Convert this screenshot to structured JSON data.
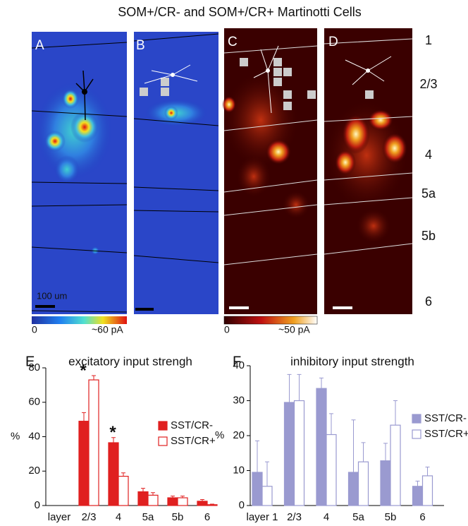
{
  "title": "SOM+/CR- and SOM+/CR+ Martinotti Cells",
  "panels": [
    "A",
    "B",
    "C",
    "D"
  ],
  "layers": [
    "1",
    "2/3",
    "4",
    "5a",
    "5b",
    "6"
  ],
  "scale_bar": "100 um",
  "colorbars": [
    {
      "min": "0",
      "max": "~60 pA"
    },
    {
      "min": "0",
      "max": "~50 pA"
    }
  ],
  "chart_data": [
    {
      "type": "bar",
      "panel": "E",
      "title": "excitatory input strengh",
      "ylabel": "%",
      "categories": [
        "layer",
        "2/3",
        "4",
        "5a",
        "5b",
        "6"
      ],
      "series": [
        {
          "name": "SST/CR-",
          "color": "#e02020",
          "fill": "#e02020",
          "values": [
            null,
            49,
            36.5,
            8,
            4.5,
            2.5
          ],
          "errors": [
            null,
            5,
            3,
            2,
            1,
            1
          ]
        },
        {
          "name": "SST/CR+",
          "color": "#e02020",
          "fill": "#ffffff",
          "values": [
            null,
            73,
            17,
            6,
            4.5,
            0.5
          ],
          "errors": [
            null,
            2.5,
            2,
            1.5,
            1,
            0.3
          ]
        }
      ],
      "annotations": [
        "*",
        "*"
      ],
      "ylim": [
        0,
        80
      ],
      "yticks": [
        0,
        20,
        40,
        60,
        80
      ]
    },
    {
      "type": "bar",
      "panel": "F",
      "title": "inhibitory input strength",
      "ylabel": "%",
      "categories": [
        "layer 1",
        "2/3",
        "4",
        "5a",
        "5b",
        "6"
      ],
      "series": [
        {
          "name": "SST/CR-",
          "color": "#9a9ad0",
          "fill": "#9a9ad0",
          "values": [
            9.5,
            29.5,
            33.5,
            9.5,
            12.8,
            5.5
          ],
          "errors": [
            9,
            8,
            3,
            15,
            5,
            1.5
          ]
        },
        {
          "name": "SST/CR+",
          "color": "#9a9ad0",
          "fill": "#ffffff",
          "values": [
            5.5,
            30,
            20.3,
            12.5,
            23,
            8.5
          ],
          "errors": [
            7,
            7.5,
            6,
            5.5,
            7,
            2.5
          ]
        }
      ],
      "ylim": [
        0,
        40
      ],
      "yticks": [
        0,
        10,
        20,
        30,
        40
      ]
    }
  ]
}
